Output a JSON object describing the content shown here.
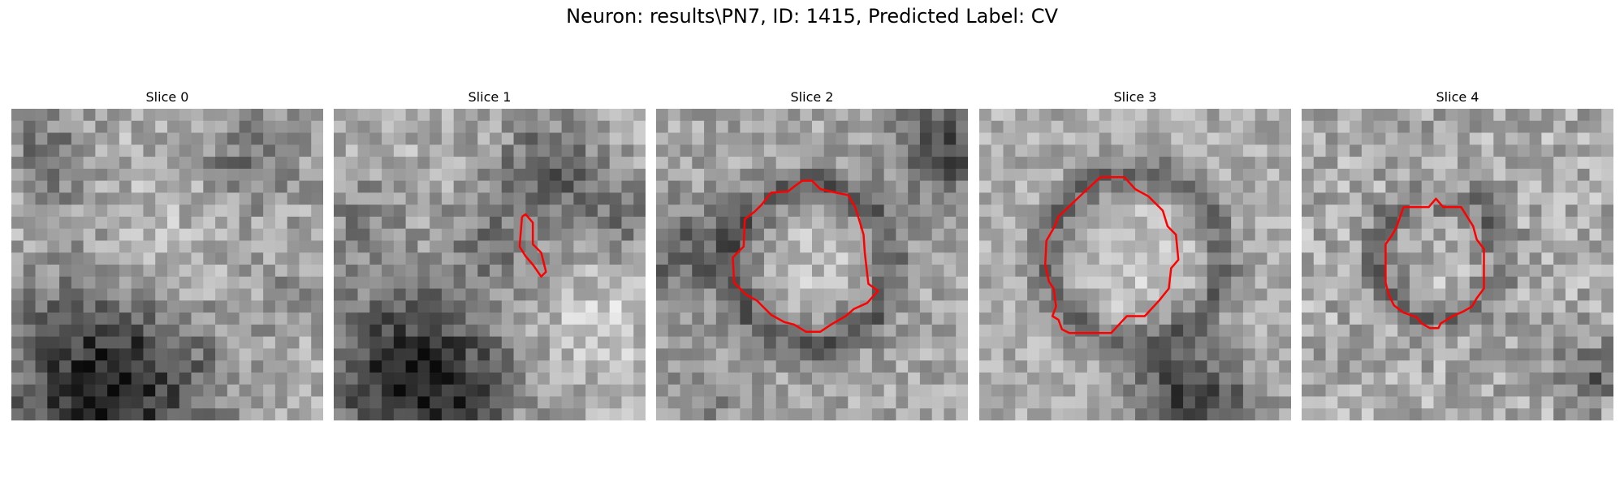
{
  "figure": {
    "title": "Neuron: results\\PN7, ID: 1415, Predicted Label: CV"
  },
  "colors": {
    "contour": "#ff0000"
  },
  "slices": [
    {
      "label": "Slice 0",
      "has_contour": false
    },
    {
      "label": "Slice 1",
      "has_contour": true
    },
    {
      "label": "Slice 2",
      "has_contour": true
    },
    {
      "label": "Slice 3",
      "has_contour": true
    },
    {
      "label": "Slice 4",
      "has_contour": true
    }
  ]
}
